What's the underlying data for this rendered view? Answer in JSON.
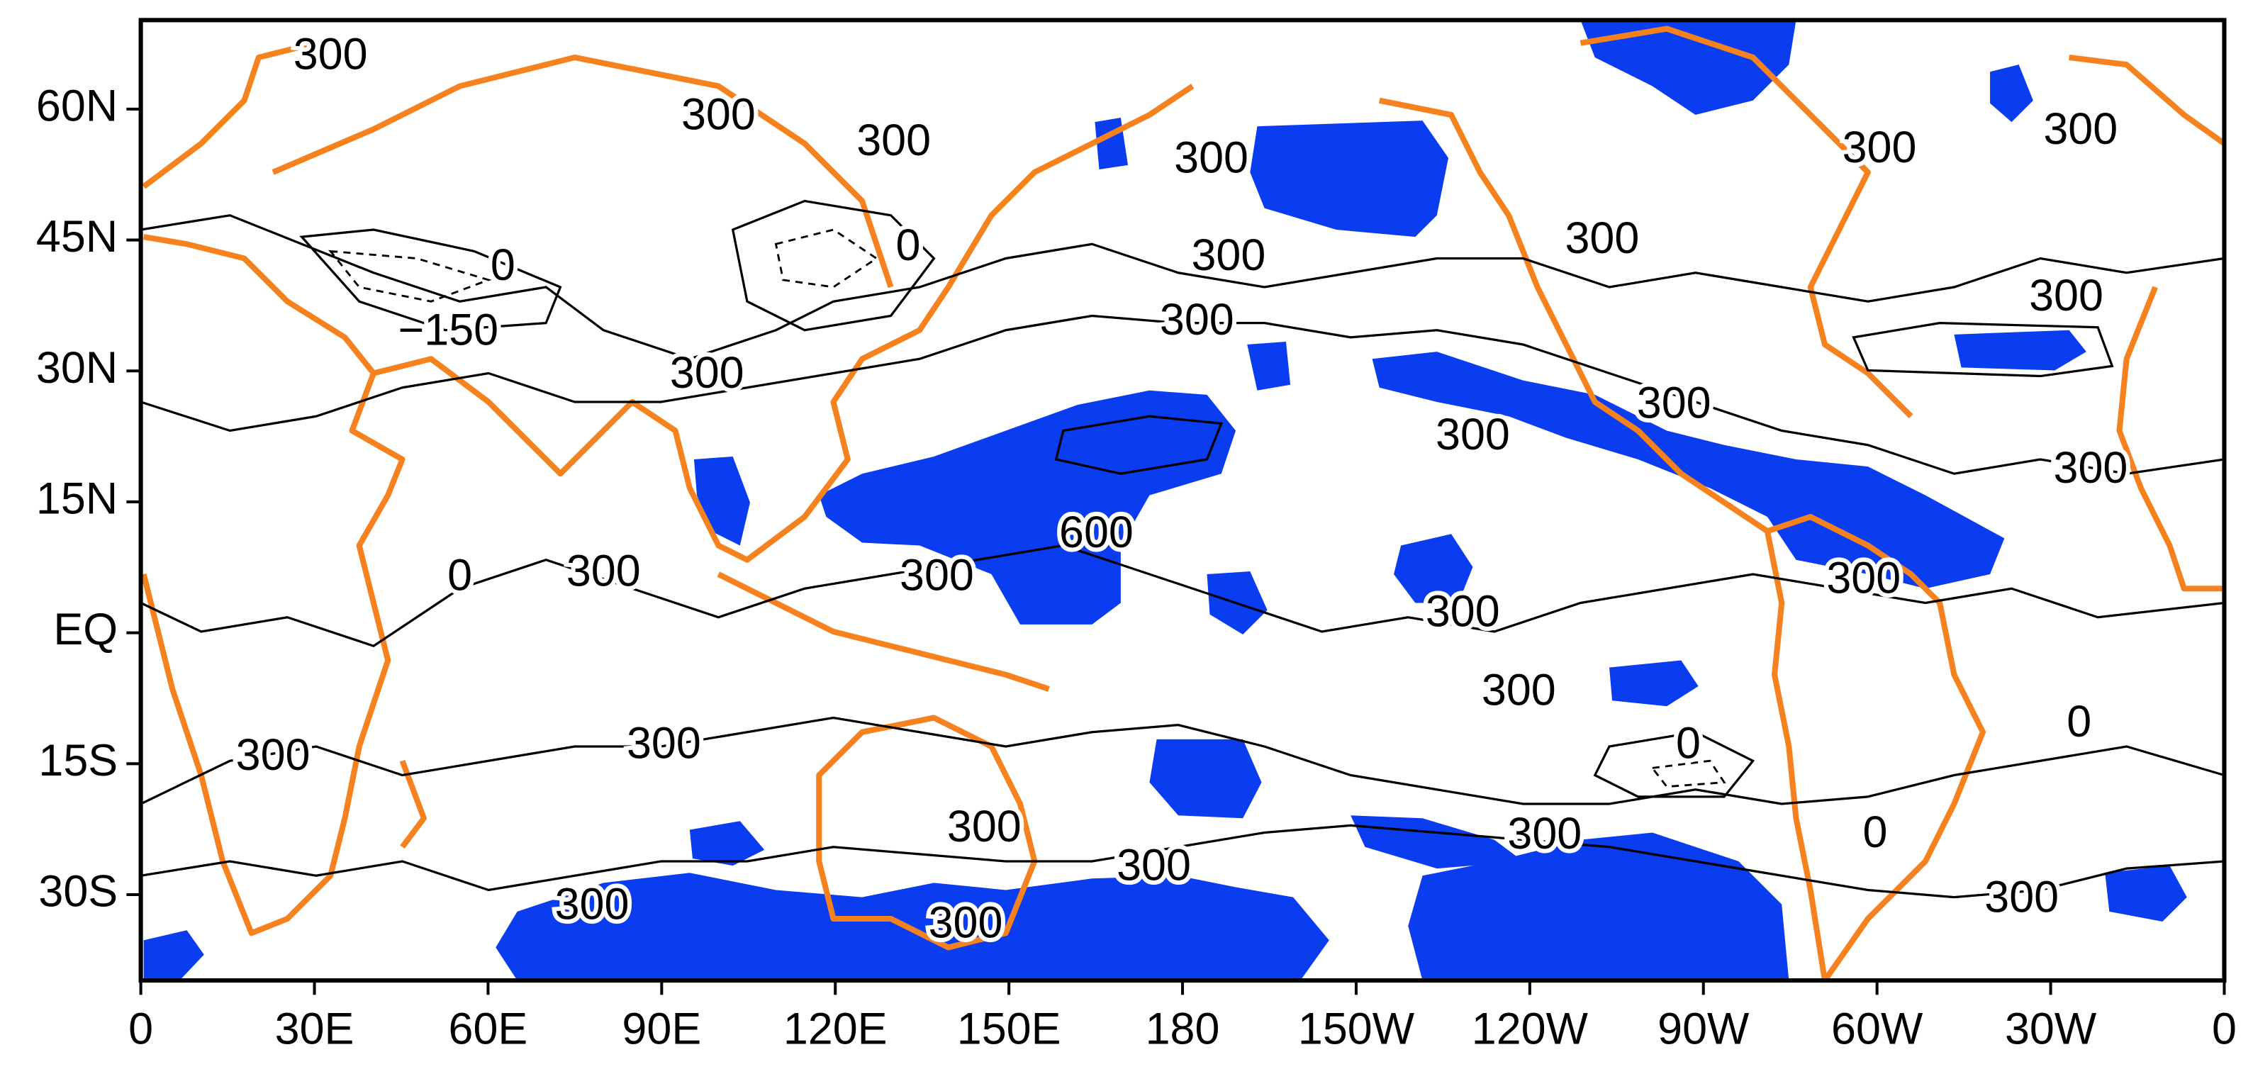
{
  "map": {
    "x_ticks": [
      "0",
      "30E",
      "60E",
      "90E",
      "120E",
      "150E",
      "180",
      "150W",
      "120W",
      "90W",
      "60W",
      "30W",
      "0"
    ],
    "y_ticks": [
      "60N",
      "45N",
      "30N",
      "15N",
      "EQ",
      "15S",
      "30S"
    ],
    "contour_labels": [
      "300",
      "300",
      "300",
      "300",
      "0",
      "0",
      "−150",
      "300",
      "300",
      "300",
      "300",
      "300",
      "300",
      "300",
      "300",
      "300",
      "300",
      "600",
      "300",
      "0",
      "300",
      "300",
      "300",
      "300",
      "300",
      "300",
      "0",
      "0",
      "300",
      "300",
      "300",
      "0",
      "300",
      "300",
      "300"
    ]
  }
}
